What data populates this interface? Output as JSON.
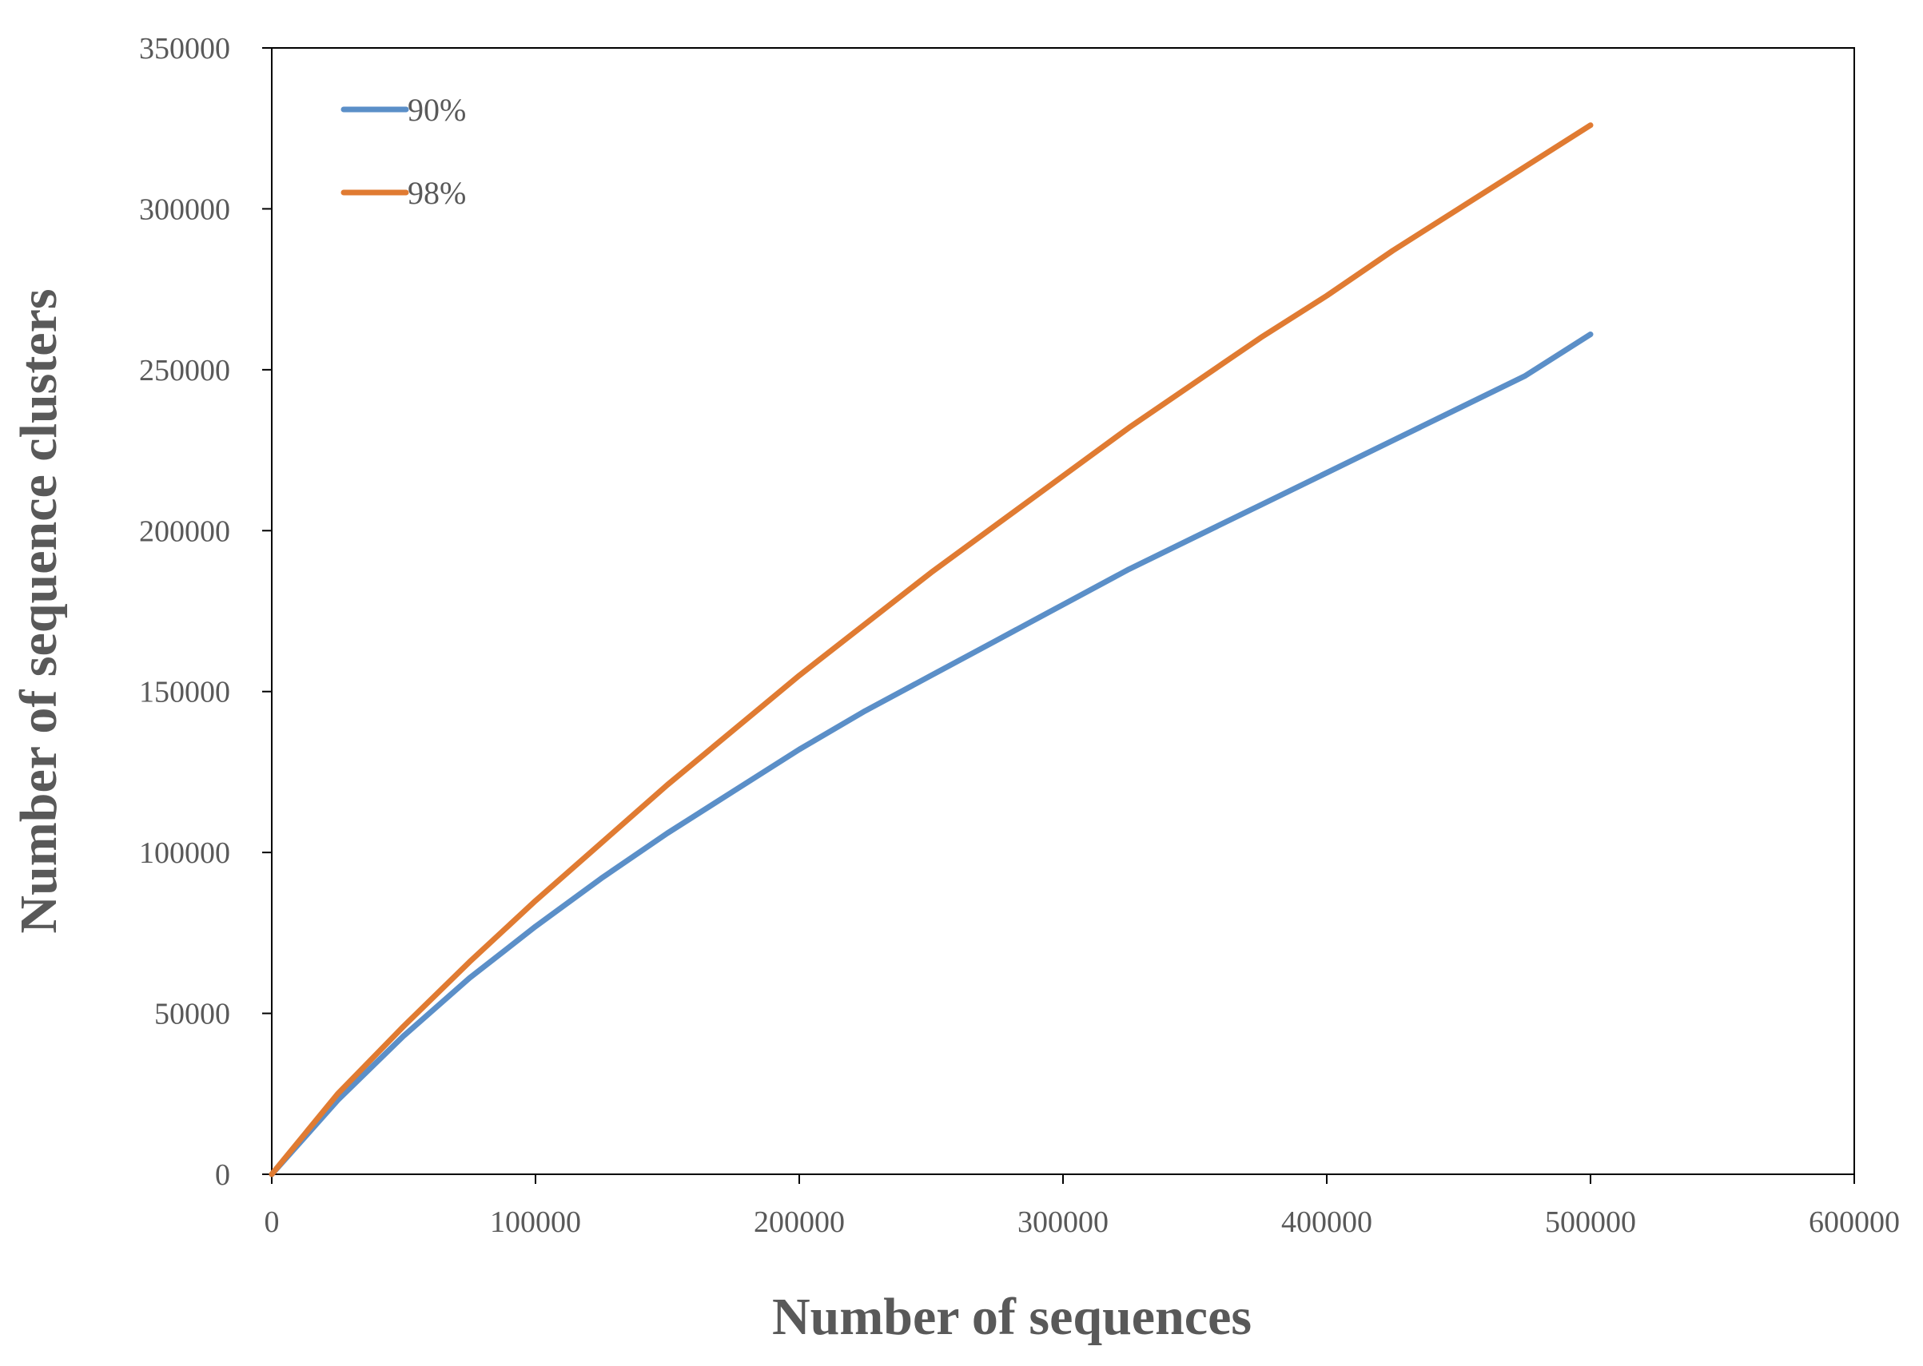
{
  "chart_data": {
    "type": "line",
    "xlabel": "Number of sequences",
    "ylabel": "Number of sequence clusters",
    "xlim": [
      0,
      600000
    ],
    "ylim": [
      0,
      350000
    ],
    "x_ticks": [
      "0",
      "100000",
      "200000",
      "300000",
      "400000",
      "500000",
      "600000"
    ],
    "y_ticks": [
      "0",
      "50000",
      "100000",
      "150000",
      "200000",
      "250000",
      "300000",
      "350000"
    ],
    "grid": false,
    "legend_position": "top-left",
    "series": [
      {
        "name": "90%",
        "color": "#5B8FC8",
        "x": [
          0,
          25000,
          50000,
          75000,
          100000,
          125000,
          150000,
          175000,
          200000,
          225000,
          250000,
          275000,
          300000,
          325000,
          350000,
          375000,
          400000,
          425000,
          450000,
          475000,
          500000
        ],
        "y": [
          0,
          23000,
          43000,
          61000,
          77000,
          92000,
          106000,
          119000,
          132000,
          144000,
          155000,
          166000,
          177000,
          188000,
          198000,
          208000,
          218000,
          228000,
          238000,
          248000,
          261000
        ]
      },
      {
        "name": "98%",
        "color": "#E07B32",
        "x": [
          0,
          25000,
          50000,
          75000,
          100000,
          125000,
          150000,
          175000,
          200000,
          225000,
          250000,
          275000,
          300000,
          325000,
          350000,
          375000,
          400000,
          425000,
          450000,
          475000,
          500000
        ],
        "y": [
          0,
          25000,
          46000,
          66000,
          85000,
          103000,
          121000,
          138000,
          155000,
          171000,
          187000,
          202000,
          217000,
          232000,
          246000,
          260000,
          273000,
          287000,
          300000,
          313000,
          326000
        ]
      }
    ]
  }
}
